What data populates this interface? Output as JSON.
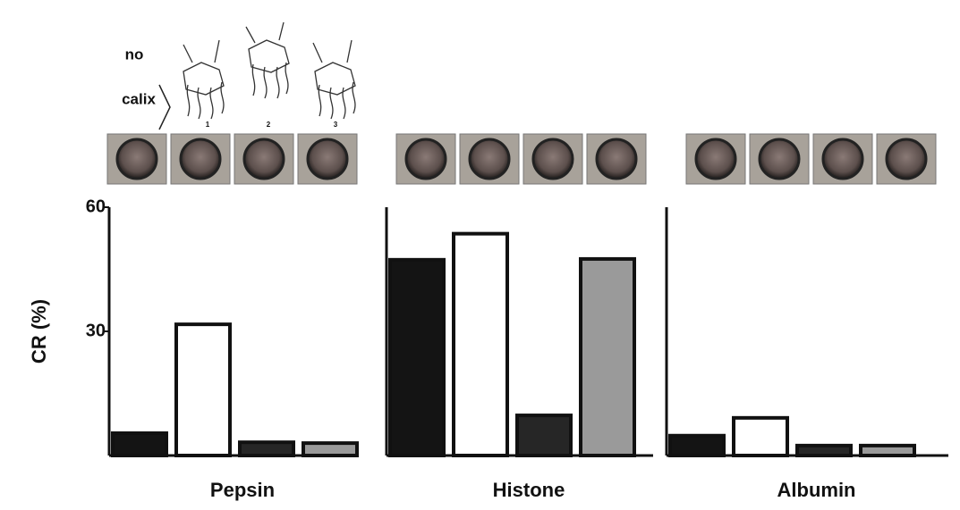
{
  "header": {
    "line1": "no",
    "line2": "calix",
    "compounds": [
      "1",
      "2",
      "3"
    ]
  },
  "chart_data": [
    {
      "type": "bar",
      "title": "Pepsin",
      "y_label": "CR (%)",
      "categories": [
        null,
        null,
        null,
        null
      ],
      "values": [
        5.4,
        31.7,
        3.2,
        3.0
      ],
      "colors": [
        "#141414",
        "#ffffff",
        "#262626",
        "#9a9a9a"
      ],
      "ylim": [
        0,
        60
      ],
      "yticks": [
        30,
        60
      ]
    },
    {
      "type": "bar",
      "title": "Histone",
      "categories": [
        null,
        null,
        null,
        null
      ],
      "values": [
        47.3,
        53.6,
        9.7,
        47.5
      ],
      "colors": [
        "#141414",
        "#ffffff",
        "#262626",
        "#9a9a9a"
      ],
      "ylim": [
        0,
        60
      ]
    },
    {
      "type": "bar",
      "title": "Albumin",
      "categories": [
        null,
        null,
        null,
        null
      ],
      "values": [
        4.8,
        9.1,
        2.4,
        2.4
      ],
      "colors": [
        "#141414",
        "#ffffff",
        "#262626",
        "#9a9a9a"
      ],
      "ylim": [
        0,
        60
      ]
    }
  ]
}
